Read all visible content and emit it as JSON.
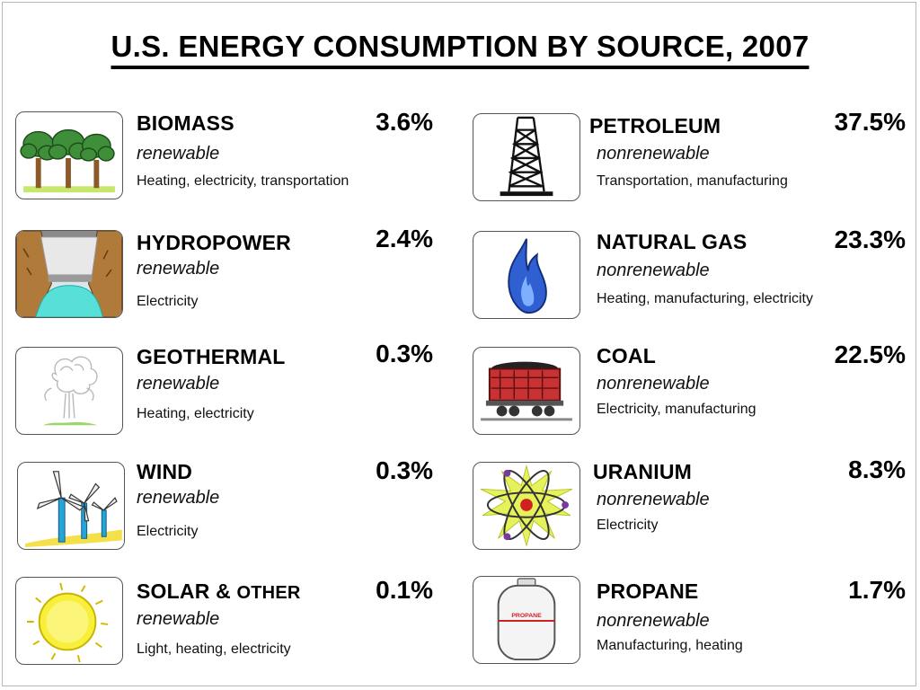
{
  "title": "U.S. ENERGY CONSUMPTION BY SOURCE, 2007",
  "colors": {
    "renewable_green": "#2e7d32",
    "flame_blue": "#2f5fd0",
    "text": "#000000"
  },
  "sources": {
    "biomass": {
      "name": "BIOMASS",
      "kind": "renewable",
      "uses": "Heating, electricity, transportation",
      "percent": "3.6%",
      "icon": "trees-icon"
    },
    "hydropower": {
      "name": "HYDROPOWER",
      "kind": "renewable",
      "uses": "Electricity",
      "percent": "2.4%",
      "icon": "dam-icon"
    },
    "geothermal": {
      "name": "GEOTHERMAL",
      "kind": "renewable",
      "uses": "Heating, electricity",
      "percent": "0.3%",
      "icon": "geyser-icon"
    },
    "wind": {
      "name": "WIND",
      "kind": "renewable",
      "uses": "Electricity",
      "percent": "0.3%",
      "icon": "wind-turbine-icon"
    },
    "solar": {
      "name_main": "SOLAR &",
      "name_small": "OTHER",
      "kind": "renewable",
      "uses": "Light, heating, electricity",
      "percent": "0.1%",
      "icon": "sun-icon"
    },
    "petroleum": {
      "name": "PETROLEUM",
      "kind": "nonrenewable",
      "uses": "Transportation, manufacturing",
      "percent": "37.5%",
      "icon": "oil-derrick-icon"
    },
    "natural_gas": {
      "name": "NATURAL GAS",
      "kind": "nonrenewable",
      "uses": "Heating, manufacturing, electricity",
      "percent": "23.3%",
      "icon": "gas-flame-icon"
    },
    "coal": {
      "name": "COAL",
      "kind": "nonrenewable",
      "uses": "Electricity, manufacturing",
      "percent": "22.5%",
      "icon": "coal-car-icon"
    },
    "uranium": {
      "name": "URANIUM",
      "kind": "nonrenewable",
      "uses": "Electricity",
      "percent": "8.3%",
      "icon": "atom-icon"
    },
    "propane": {
      "name": "PROPANE",
      "kind": "nonrenewable",
      "uses": "Manufacturing, heating",
      "percent": "1.7%",
      "icon": "propane-tank-icon",
      "tank_label": "PROPANE"
    }
  }
}
